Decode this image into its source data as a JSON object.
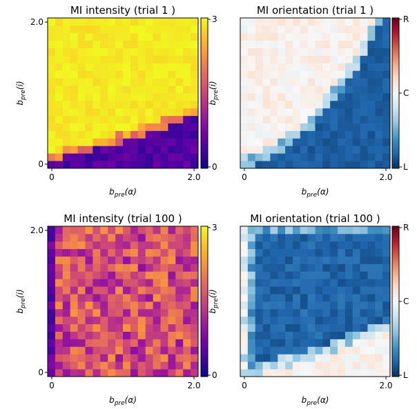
{
  "chart_data": [
    {
      "type": "heatmap",
      "title": "MI intensity (trial 1 )",
      "xlabel": "b_pre(α)",
      "ylabel": "b_pre(i)",
      "xlim": [
        0,
        2.0
      ],
      "ylim": [
        0,
        2.0
      ],
      "xticks": [
        "0",
        "2.0"
      ],
      "yticks": [
        "0",
        "2.0"
      ],
      "colormap": "plasma",
      "colorbar_range": [
        0,
        3
      ],
      "colorbar_ticks": [
        "0",
        "3"
      ],
      "grid_size": 20,
      "pattern": "intensity_trial1"
    },
    {
      "type": "heatmap",
      "title": "MI orientation (trial 1 )",
      "xlabel": "b_pre(α)",
      "ylabel": "b_pre(i)",
      "xlim": [
        0,
        2.0
      ],
      "ylim": [
        0,
        2.0
      ],
      "xticks": [
        "0",
        "2.0"
      ],
      "yticks": [],
      "colormap": "RdBu",
      "colorbar_ticks": [
        "L",
        "C",
        "R"
      ],
      "grid_size": 20,
      "pattern": "orientation_trial1"
    },
    {
      "type": "heatmap",
      "title": "MI intensity (trial 100 )",
      "xlabel": "b_pre(α)",
      "ylabel": "b_pre(i)",
      "xlim": [
        0,
        2.0
      ],
      "ylim": [
        0,
        2.0
      ],
      "xticks": [
        "0",
        "2.0"
      ],
      "yticks": [
        "0",
        "2.0"
      ],
      "colormap": "plasma",
      "colorbar_range": [
        0,
        3
      ],
      "colorbar_ticks": [
        "0",
        "3"
      ],
      "grid_size": 20,
      "pattern": "intensity_trial100"
    },
    {
      "type": "heatmap",
      "title": "MI orientation (trial 100 )",
      "xlabel": "b_pre(α)",
      "ylabel": "b_pre(i)",
      "xlim": [
        0,
        2.0
      ],
      "ylim": [
        0,
        2.0
      ],
      "xticks": [
        "0",
        "2.0"
      ],
      "yticks": [],
      "colormap": "RdBu",
      "colorbar_ticks": [
        "L",
        "C",
        "R"
      ],
      "grid_size": 20,
      "pattern": "orientation_trial100"
    }
  ]
}
